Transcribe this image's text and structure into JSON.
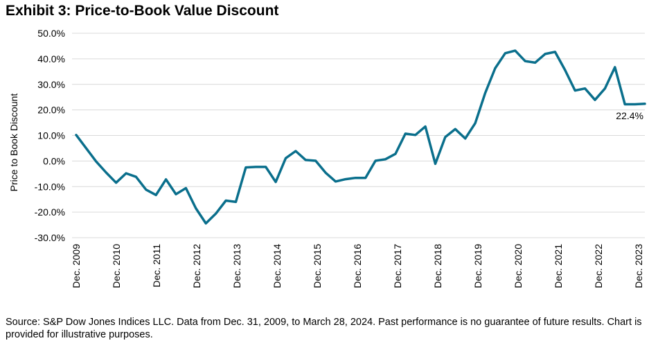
{
  "chart_data": {
    "type": "line",
    "title": "Exhibit 3: Price-to-Book Value Discount",
    "ylabel": "Price to Book Discount",
    "xlabel": "",
    "ylim": [
      -30,
      50
    ],
    "y_ticks": [
      50,
      40,
      30,
      20,
      10,
      0,
      -10,
      -20,
      -30
    ],
    "y_tick_labels": [
      "50.0%",
      "40.0%",
      "30.0%",
      "20.0%",
      "10.0%",
      "0.0%",
      "-10.0%",
      "-20.0%",
      "-30.0%"
    ],
    "x_tick_labels": [
      "Dec. 2009",
      "Dec. 2010",
      "Dec. 2011",
      "Dec. 2012",
      "Dec. 2013",
      "Dec. 2014",
      "Dec. 2015",
      "Dec. 2016",
      "Dec. 2017",
      "Dec. 2018",
      "Dec. 2019",
      "Dec. 2020",
      "Dec. 2021",
      "Dec. 2022",
      "Dec. 2023"
    ],
    "grid": "horizontal",
    "series": [
      {
        "name": "Price-to-Book Value Discount",
        "color": "#0a6f8c",
        "values": [
          10.2,
          5.0,
          -0.2,
          -4.5,
          -8.5,
          -4.8,
          -6.2,
          -11.2,
          -13.3,
          -7.2,
          -13.0,
          -10.6,
          -18.5,
          -24.4,
          -20.6,
          -15.5,
          -16.0,
          -2.5,
          -2.3,
          -2.3,
          -8.2,
          1.1,
          3.9,
          0.4,
          0.1,
          -4.6,
          -8.0,
          -7.1,
          -6.6,
          -6.6,
          0.1,
          0.7,
          2.8,
          10.7,
          10.2,
          13.5,
          -1.1,
          9.4,
          12.5,
          8.8,
          14.8,
          26.6,
          36.3,
          42.2,
          43.2,
          39.1,
          38.5,
          41.9,
          42.7,
          35.6,
          27.6,
          28.4,
          23.9,
          28.4,
          36.7,
          22.2,
          22.2,
          22.4
        ]
      }
    ],
    "annotations": [
      {
        "text": "22.4%",
        "series_index": 0,
        "point_index": 57
      }
    ]
  },
  "footer": {
    "source": "Source: S&P Dow Jones Indices LLC. Data from Dec. 31, 2009, to March 28, 2024. Past performance is no guarantee of future results. Chart is provided for illustrative purposes."
  }
}
